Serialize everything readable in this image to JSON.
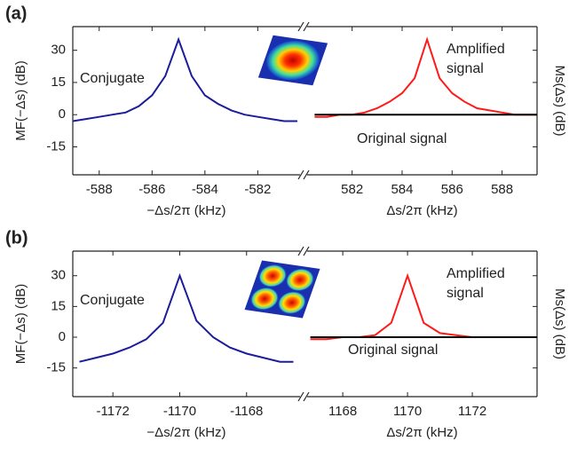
{
  "chart_data": [
    {
      "type": "line",
      "label": "(a)",
      "ylabel": "MF(−Δs) (dB)",
      "y2label": "Ms(Δs) (dB)",
      "ylim": [
        -28,
        41
      ],
      "yticks": [
        -15,
        0,
        15,
        30
      ],
      "x_segments": [
        {
          "xlabel": "−Δs/2π (kHz)",
          "xlim": [
            -589,
            -580.4
          ],
          "xticks": [
            -588,
            -586,
            -584,
            -582
          ]
        },
        {
          "xlabel": "Δs/2π (kHz)",
          "xlim": [
            580.2,
            589.4
          ],
          "xticks": [
            582,
            584,
            586,
            588
          ]
        }
      ],
      "series": [
        {
          "name": "Conjugate",
          "color": "#1c1c9c",
          "segment": 0,
          "x": [
            -589,
            -588.5,
            -588,
            -587.5,
            -587,
            -586.5,
            -586,
            -585.5,
            -585,
            -584.5,
            -584,
            -583.5,
            -583,
            -582.5,
            -582,
            -581.5,
            -581,
            -580.5
          ],
          "values": [
            -3,
            -2,
            -1,
            0,
            1,
            4,
            9,
            18,
            35,
            18,
            9,
            5,
            2,
            0,
            -1,
            -2,
            -3,
            -3
          ]
        },
        {
          "name": "Amplified signal",
          "color": "#ff1a1a",
          "segment": 1,
          "x": [
            580.5,
            581,
            581.5,
            582,
            582.5,
            583,
            583.5,
            584,
            584.5,
            585,
            585.5,
            586,
            586.5,
            587,
            587.5,
            588,
            588.5,
            589,
            589.4
          ],
          "values": [
            -1,
            -1,
            0,
            0,
            1,
            3,
            6,
            10,
            17,
            35,
            17,
            10,
            6,
            3,
            2,
            1,
            0,
            0,
            0
          ]
        },
        {
          "name": "Original signal",
          "color": "#000000",
          "segment": 1,
          "x": [
            580.5,
            582,
            584,
            586,
            588,
            589.4
          ],
          "values": [
            0,
            0,
            0,
            0,
            0,
            0
          ]
        }
      ]
    },
    {
      "type": "line",
      "label": "(b)",
      "ylabel": "MF(−Δs) (dB)",
      "y2label": "Ms(Δs) (dB)",
      "ylim": [
        -29,
        42
      ],
      "yticks": [
        -15,
        0,
        15,
        30
      ],
      "x_segments": [
        {
          "xlabel": "−Δs/2π (kHz)",
          "xlim": [
            -1173.2,
            -1166.4
          ],
          "xticks": [
            -1172,
            -1170,
            -1168
          ]
        },
        {
          "xlabel": "Δs/2π (kHz)",
          "xlim": [
            1166.9,
            1174
          ],
          "xticks": [
            1168,
            1170,
            1172
          ]
        }
      ],
      "series": [
        {
          "name": "Conjugate",
          "color": "#1c1c9c",
          "segment": 0,
          "x": [
            -1173,
            -1172.5,
            -1172,
            -1171.5,
            -1171,
            -1170.5,
            -1170,
            -1169.5,
            -1169,
            -1168.5,
            -1168,
            -1167.5,
            -1167,
            -1166.6
          ],
          "values": [
            -12,
            -10,
            -8,
            -5,
            -1,
            7,
            30,
            8,
            0,
            -5,
            -8,
            -10,
            -12,
            -12
          ]
        },
        {
          "name": "Amplified signal",
          "color": "#ff1a1a",
          "segment": 1,
          "x": [
            1167,
            1167.5,
            1168,
            1168.5,
            1169,
            1169.5,
            1170,
            1170.5,
            1171,
            1171.5,
            1172,
            1172.5,
            1173,
            1174
          ],
          "values": [
            -1,
            -1,
            0,
            0,
            1,
            7,
            30,
            7,
            2,
            1,
            0,
            0,
            0,
            0
          ]
        },
        {
          "name": "Original signal",
          "color": "#000000",
          "segment": 1,
          "x": [
            1167,
            1169,
            1171,
            1173,
            1174
          ],
          "values": [
            0,
            0,
            0,
            0,
            0
          ]
        }
      ]
    }
  ]
}
